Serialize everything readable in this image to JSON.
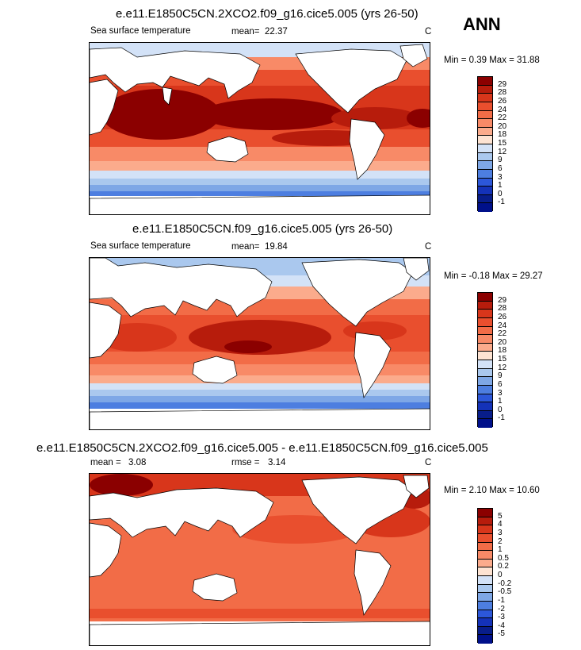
{
  "season": "ANN",
  "panels": [
    {
      "title": "e.e11.E1850C5CN.2XCO2.f09_g16.cice5.005 (yrs 26-50)",
      "variable": "Sea surface temperature",
      "stat_label": "mean=",
      "stat_value": "22.37",
      "units": "C",
      "range_text": "Min =   0.39 Max =  31.88",
      "colorbar_levels": [
        "29",
        "28",
        "26",
        "24",
        "22",
        "20",
        "18",
        "15",
        "12",
        "9",
        "6",
        "3",
        "1",
        "0",
        "-1"
      ],
      "colors": [
        "#8b0000",
        "#b71c0c",
        "#d8361b",
        "#e94f2e",
        "#f26c47",
        "#f88a67",
        "#fbab8c",
        "#fde3d2",
        "#d3e2f7",
        "#aac8ee",
        "#7ea7e6",
        "#4d7ee0",
        "#2c57d9",
        "#1432b8",
        "#081d8a",
        "#00108a"
      ]
    },
    {
      "title": "e.e11.E1850C5CN.f09_g16.cice5.005 (yrs 26-50)",
      "variable": "Sea surface temperature",
      "stat_label": "mean=",
      "stat_value": "19.84",
      "units": "C",
      "range_text": "Min =  -0.18 Max =  29.27",
      "colorbar_levels": [
        "29",
        "28",
        "26",
        "24",
        "22",
        "20",
        "18",
        "15",
        "12",
        "9",
        "6",
        "3",
        "1",
        "0",
        "-1"
      ],
      "colors": [
        "#8b0000",
        "#b71c0c",
        "#d8361b",
        "#e94f2e",
        "#f26c47",
        "#f88a67",
        "#fbab8c",
        "#fde3d2",
        "#d3e2f7",
        "#aac8ee",
        "#7ea7e6",
        "#4d7ee0",
        "#2c57d9",
        "#1432b8",
        "#081d8a",
        "#00108a"
      ]
    },
    {
      "title": "e.e11.E1850C5CN.2XCO2.f09_g16.cice5.005 - e.e11.E1850C5CN.f09_g16.cice5.005",
      "variable": "",
      "stat_label": "mean =",
      "stat_value": "3.08",
      "stat2_label": "rmse =",
      "stat2_value": "3.14",
      "units": "C",
      "range_text": "Min =   2.10 Max =  10.60",
      "colorbar_levels": [
        "5",
        "4",
        "3",
        "2",
        "1",
        "0.5",
        "0.2",
        "0",
        "-0.2",
        "-0.5",
        "-1",
        "-2",
        "-3",
        "-4",
        "-5"
      ],
      "colors": [
        "#8b0000",
        "#b71c0c",
        "#d8361b",
        "#e94f2e",
        "#f26c47",
        "#f88a67",
        "#fbab8c",
        "#fde3d2",
        "#d3e2f7",
        "#aac8ee",
        "#7ea7e6",
        "#4d7ee0",
        "#2c57d9",
        "#1432b8",
        "#081d8a",
        "#00108a"
      ]
    }
  ]
}
